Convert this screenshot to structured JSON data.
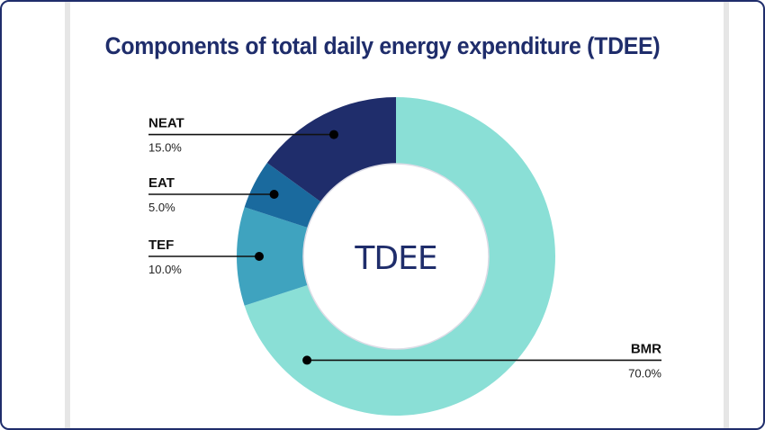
{
  "chart_data": {
    "type": "pie",
    "title": "Components of total daily energy expenditure (TDEE)",
    "center_label": "TDEE",
    "donut": true,
    "slices": [
      {
        "key": "bmr",
        "label": "BMR",
        "value": 70.0,
        "value_label": "70.0%",
        "color": "#8adfd6"
      },
      {
        "key": "tef",
        "label": "TEF",
        "value": 10.0,
        "value_label": "10.0%",
        "color": "#3fa3bf"
      },
      {
        "key": "eat",
        "label": "EAT",
        "value": 5.0,
        "value_label": "5.0%",
        "color": "#1a6a9e"
      },
      {
        "key": "neat",
        "label": "NEAT",
        "value": 15.0,
        "value_label": "15.0%",
        "color": "#1f2d6b"
      }
    ]
  }
}
